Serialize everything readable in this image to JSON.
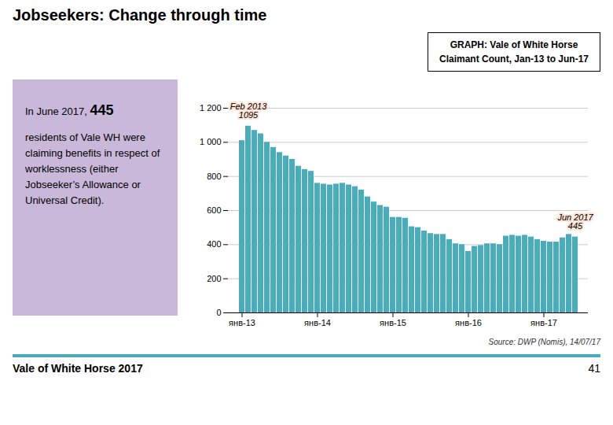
{
  "chart_data": {
    "type": "bar",
    "title": "Jobseekers: Change through time",
    "subtitle": [
      "GRAPH: Vale of White Horse",
      "Claimant Count, Jan-13 to Jun-17"
    ],
    "categories": [
      "янв-13",
      null,
      null,
      null,
      null,
      null,
      null,
      null,
      null,
      null,
      null,
      null,
      "янв-14",
      null,
      null,
      null,
      null,
      null,
      null,
      null,
      null,
      null,
      null,
      null,
      "янв-15",
      null,
      null,
      null,
      null,
      null,
      null,
      null,
      null,
      null,
      null,
      null,
      "янв-16",
      null,
      null,
      null,
      null,
      null,
      null,
      null,
      null,
      null,
      null,
      null,
      "янв-17",
      null,
      null,
      null,
      null,
      null
    ],
    "values": [
      1010,
      1095,
      1070,
      1050,
      1000,
      970,
      940,
      920,
      900,
      860,
      840,
      830,
      760,
      755,
      750,
      755,
      760,
      750,
      740,
      720,
      680,
      650,
      630,
      620,
      560,
      560,
      555,
      505,
      500,
      480,
      465,
      460,
      460,
      430,
      405,
      400,
      360,
      390,
      395,
      405,
      405,
      400,
      450,
      455,
      450,
      455,
      445,
      430,
      420,
      415,
      415,
      440,
      460,
      445
    ],
    "color": "#4aabba",
    "ylim": [
      0,
      1200
    ],
    "yticks": [
      0,
      200,
      400,
      600,
      800,
      {
        "value": 1000,
        "label": "1 000"
      },
      {
        "value": 1200,
        "label": "1 200"
      }
    ],
    "grid": true,
    "annotations": [
      {
        "text": [
          "Feb 2013",
          "1095"
        ],
        "index": 1,
        "value": 1095
      },
      {
        "text": [
          "Jun 2017",
          "445"
        ],
        "index": 53,
        "value": 445
      }
    ],
    "sidebar": [
      "In June 2017, ",
      "445",
      "residents of Vale WH were claiming benefits in respect of worklessness (either Jobseeker’s Allowance or Universal Credit)."
    ],
    "source": "Source: DWP (Nomis), 14/07/17",
    "footer": [
      "Vale of White Horse 2017",
      "41"
    ]
  }
}
